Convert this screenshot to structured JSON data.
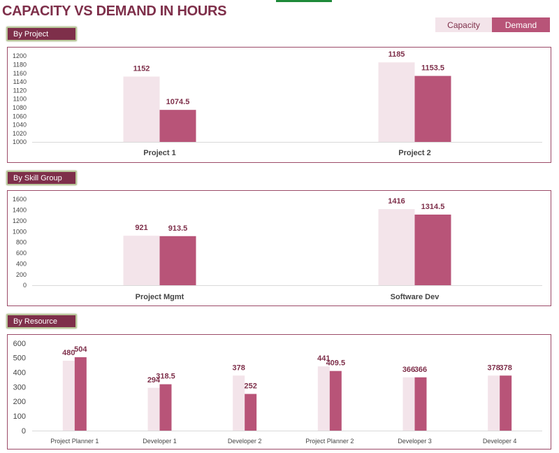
{
  "title": "CAPACITY VS DEMAND IN HOURS",
  "legend": {
    "capacity": "Capacity",
    "demand": "Demand"
  },
  "colors": {
    "capacity": "#f3e4ea",
    "demand": "#b85478",
    "label": "#7e2f4a",
    "accent": "#7e2f4a"
  },
  "slicers": {
    "project": "By Project",
    "skill": "By Skill Group",
    "resource": "By Resource"
  },
  "chart_data": [
    {
      "type": "bar",
      "categories": [
        "Project 1",
        "Project 2"
      ],
      "series": [
        {
          "name": "Capacity",
          "values": [
            1152,
            1185
          ]
        },
        {
          "name": "Demand",
          "values": [
            1074.5,
            1153.5
          ]
        }
      ],
      "ylim": [
        1000,
        1200
      ],
      "yticks": [
        1000,
        1020,
        1040,
        1060,
        1080,
        1100,
        1120,
        1140,
        1160,
        1180,
        1200
      ],
      "grid": false,
      "legend": "top-right"
    },
    {
      "type": "bar",
      "categories": [
        "Project Mgmt",
        "Software Dev"
      ],
      "series": [
        {
          "name": "Capacity",
          "values": [
            921,
            1416
          ]
        },
        {
          "name": "Demand",
          "values": [
            913.5,
            1314.5
          ]
        }
      ],
      "ylim": [
        0,
        1600
      ],
      "yticks": [
        0,
        200,
        400,
        600,
        800,
        1000,
        1200,
        1400,
        1600
      ],
      "grid": false,
      "legend": "top-right"
    },
    {
      "type": "bar",
      "categories": [
        "Project Planner 1",
        "Developer 1",
        "Developer 2",
        "Project Planner 2",
        "Developer 3",
        "Developer 4"
      ],
      "series": [
        {
          "name": "Capacity",
          "values": [
            480,
            294,
            378,
            441,
            366,
            378
          ]
        },
        {
          "name": "Demand",
          "values": [
            504,
            318.5,
            252,
            409.5,
            366,
            378
          ]
        }
      ],
      "ylim": [
        0,
        600
      ],
      "yticks": [
        0,
        100,
        200,
        300,
        400,
        500,
        600
      ],
      "grid": false,
      "legend": "top-right"
    }
  ]
}
